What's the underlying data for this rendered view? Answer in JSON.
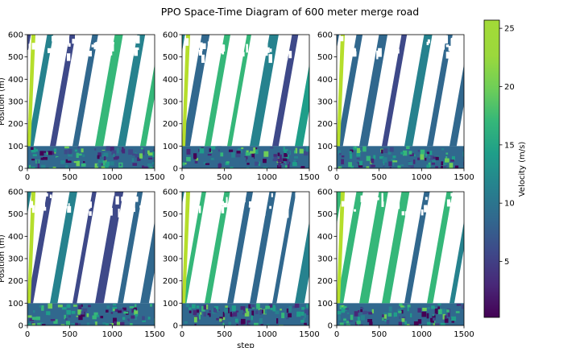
{
  "chart_data": {
    "type": "heatmap",
    "title": "PPO Space-Time Diagram of 600 meter merge road",
    "xlabel": "step",
    "ylabel": "Position (m)",
    "xlim": [
      0,
      1500
    ],
    "ylim": [
      0,
      600
    ],
    "x_ticks": [
      0,
      500,
      1000,
      1500
    ],
    "y_ticks": [
      0,
      100,
      200,
      300,
      400,
      500,
      600
    ],
    "grid": false,
    "layout": {
      "rows": 2,
      "cols": 3
    },
    "panels": 6,
    "colorbar": {
      "label": "Velocity (m/s)",
      "colormap": "viridis",
      "range": [
        0.2,
        25.7
      ],
      "ticks": [
        5,
        10,
        15,
        20,
        25
      ]
    },
    "colors": {
      "viridis": [
        "#440154",
        "#482878",
        "#3e4989",
        "#31688e",
        "#26828e",
        "#1f9e89",
        "#35b779",
        "#6ece58",
        "#b5de2b",
        "#fde725"
      ]
    }
  }
}
